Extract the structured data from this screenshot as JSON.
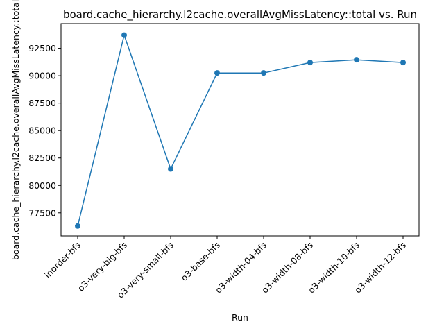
{
  "chart_data": {
    "type": "line",
    "title": "board.cache_hierarchy.l2cache.overallAvgMissLatency::total vs. Run",
    "xlabel": "Run",
    "ylabel": "board.cache_hierarchy.l2cache.overallAvgMissLatency::total",
    "categories": [
      "inorder-bfs",
      "o3-very-big-bfs",
      "o3-very-small-bfs",
      "o3-base-bfs",
      "o3-width-04-bfs",
      "o3-width-08-bfs",
      "o3-width-10-bfs",
      "o3-width-12-bfs"
    ],
    "series": [
      {
        "values": [
          76300,
          93700,
          81500,
          90250,
          90250,
          91200,
          91450,
          91200
        ],
        "color": "#1f77b4",
        "marker": "circle"
      }
    ],
    "ylim": [
      75400,
      94750
    ],
    "yticks": [
      77500,
      80000,
      82500,
      85000,
      87500,
      90000,
      92500
    ],
    "ytick_labels": [
      "77500",
      "80000",
      "82500",
      "85000",
      "87500",
      "90000",
      "92500"
    ],
    "grid": false,
    "legend": "none"
  }
}
